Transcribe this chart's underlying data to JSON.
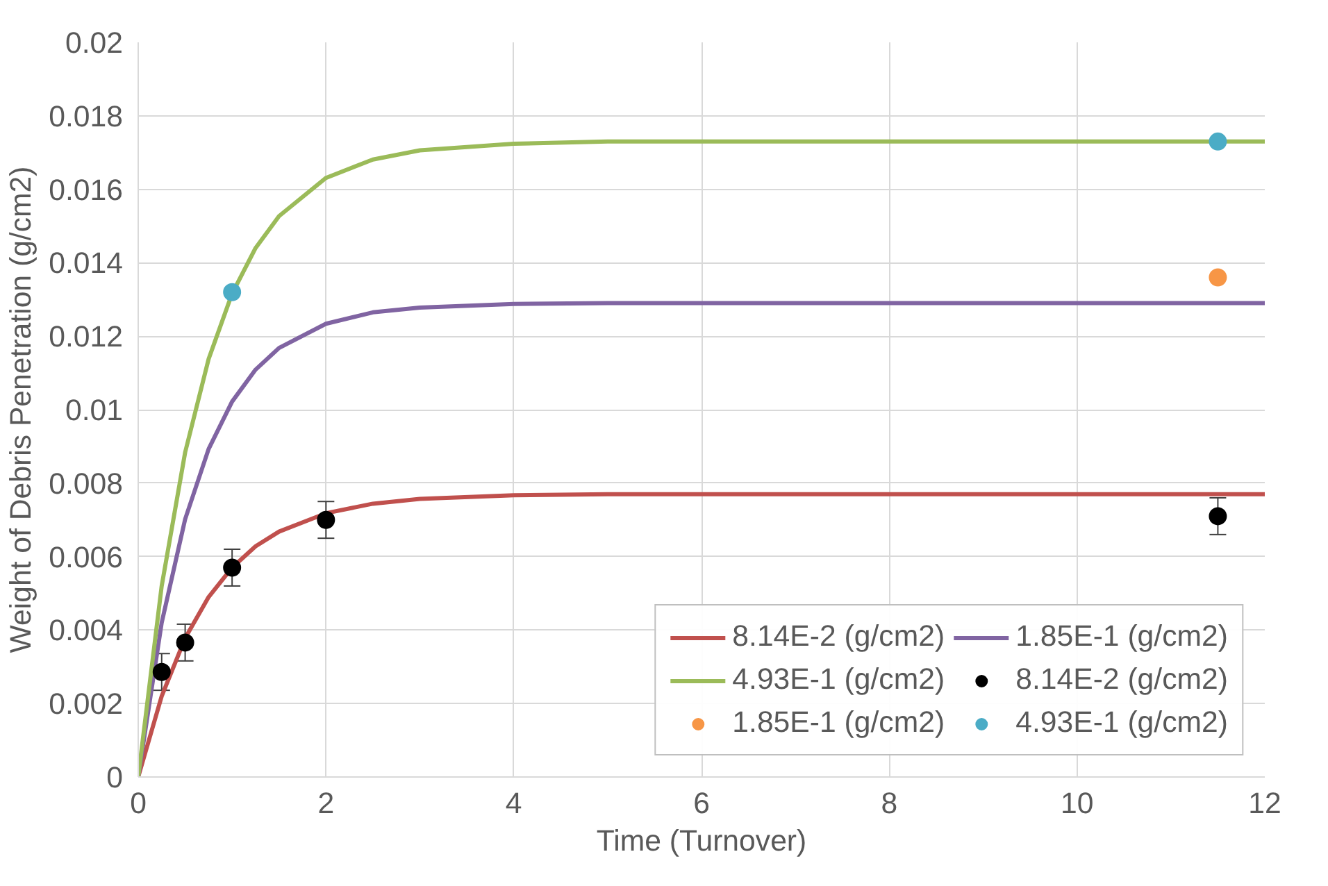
{
  "chart_data": {
    "type": "line",
    "xlabel": "Time (Turnover)",
    "ylabel": "Weight of Debris Penetration (g/cm2)",
    "xlim": [
      0,
      12
    ],
    "ylim": [
      0,
      0.02
    ],
    "xticks": [
      0,
      2,
      4,
      6,
      8,
      10,
      12
    ],
    "yticks": [
      0,
      0.002,
      0.004,
      0.006,
      0.008,
      0.01,
      0.012,
      0.014,
      0.016,
      0.018,
      0.02
    ],
    "grid": true,
    "legend": "bottom right",
    "series": [
      {
        "name": "8.14E-2 (g/cm2)",
        "color": "#c0504d",
        "x": [
          0,
          0.25,
          0.5,
          0.75,
          1,
          1.25,
          1.5,
          2,
          2.5,
          3,
          4,
          5,
          6,
          8,
          10,
          12
        ],
        "values": [
          0,
          0.0022,
          0.00378,
          0.0049,
          0.0057,
          0.00628,
          0.00668,
          0.00718,
          0.00744,
          0.00757,
          0.00767,
          0.0077,
          0.0077,
          0.0077,
          0.0077,
          0.0077
        ]
      },
      {
        "name": "1.85E-1 (g/cm2)",
        "color": "#8064a2",
        "x": [
          0,
          0.25,
          0.5,
          0.75,
          1,
          1.25,
          1.5,
          2,
          2.5,
          3,
          4,
          5,
          6,
          8,
          10,
          12
        ],
        "values": [
          0,
          0.0042,
          0.00702,
          0.00893,
          0.01022,
          0.01109,
          0.01168,
          0.01234,
          0.01265,
          0.01278,
          0.01288,
          0.0129,
          0.0129,
          0.0129,
          0.0129,
          0.0129
        ]
      },
      {
        "name": "4.93E-1 (g/cm2)",
        "color": "#9bbb59",
        "x": [
          0,
          0.25,
          0.5,
          0.75,
          1,
          1.25,
          1.5,
          2,
          2.5,
          3,
          4,
          5,
          6,
          8,
          10,
          12
        ],
        "values": [
          0,
          0.0052,
          0.00884,
          0.01138,
          0.01316,
          0.0144,
          0.01527,
          0.01631,
          0.01681,
          0.01706,
          0.01724,
          0.0173,
          0.0173,
          0.0173,
          0.0173,
          0.0173
        ]
      },
      {
        "name": "8.14E-2 (g/cm2)",
        "type": "scatter",
        "marker": "circle",
        "color": "#000000",
        "x": [
          0.25,
          0.5,
          1,
          2,
          11.5
        ],
        "values": [
          0.00286,
          0.00366,
          0.0057,
          0.007,
          0.0071
        ],
        "errors": [
          0.0005,
          0.0005,
          0.0005,
          0.0005,
          0.0005
        ]
      },
      {
        "name": "1.85E-1 (g/cm2)",
        "type": "scatter",
        "marker": "circle",
        "color": "#f79646",
        "x": [
          11.5
        ],
        "values": [
          0.0136
        ]
      },
      {
        "name": "4.93E-1 (g/cm2)",
        "type": "scatter",
        "marker": "circle",
        "color": "#4bacc6",
        "x": [
          1,
          11.5
        ],
        "values": [
          0.0132,
          0.0173
        ]
      }
    ]
  }
}
